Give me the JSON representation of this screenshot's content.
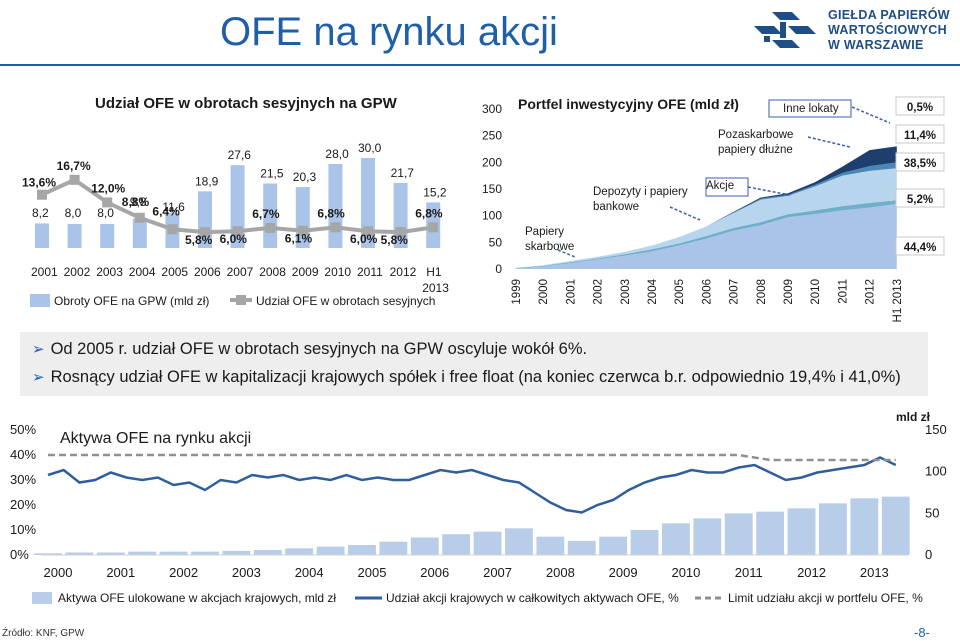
{
  "header": {
    "title": "OFE na rynku akcji"
  },
  "logo": {
    "lines": [
      "GIEŁDA PAPIERÓW",
      "WARTOŚCIOWYCH",
      "W WARSZAWIE"
    ],
    "color": "#1f4e86"
  },
  "bullets": [
    "Od 2005 r. udział OFE w obrotach sesyjnych na GPW  oscyluje wokół 6%.",
    "Rosnący udział OFE w kapitalizacji krajowych spółek i free float (na koniec czerwca b.r. odpowiednio 19,4% i 41,0%)"
  ],
  "footer": {
    "source": "Źródło: KNF, GPW",
    "page": "-8-"
  },
  "chart_data": [
    {
      "type": "bar",
      "title": "Udział OFE w obrotach sesyjnych na GPW",
      "categories": [
        "2001",
        "2002",
        "2003",
        "2004",
        "2005",
        "2006",
        "2007",
        "2008",
        "2009",
        "2010",
        "2011",
        "2012",
        "H1 2013"
      ],
      "series": [
        {
          "name": "Obroty OFE na GPW (mld zł)",
          "type": "bar",
          "color": "#a9c4e8",
          "values": [
            8.2,
            8.0,
            8.0,
            9.8,
            11.6,
            18.9,
            27.6,
            21.5,
            20.3,
            28.0,
            30.0,
            21.7,
            15.2
          ],
          "labels": [
            "8,2",
            "8,0",
            "8,0",
            "9,8",
            "11,6",
            "18,9",
            "27,6",
            "21,5",
            "20,3",
            "28,0",
            "30,0",
            "21,7",
            "15,2"
          ]
        },
        {
          "name": "Udział OFE w obrotach sesyjnych",
          "type": "line",
          "color": "#a6a6a6",
          "values": [
            13.6,
            16.7,
            12.0,
            8.8,
            6.4,
            5.8,
            6.0,
            6.7,
            6.1,
            6.8,
            6.0,
            5.8,
            6.8
          ],
          "labels": [
            "13,6%",
            "16,7%",
            "12,0%",
            "8,8%",
            "6,4%",
            "5,8%",
            "6,0%",
            "6,7%",
            "6,1%",
            "6,8%",
            "6,0%",
            "5,8%",
            "6,8%"
          ]
        }
      ]
    },
    {
      "type": "area",
      "title": "Portfel inwestycyjny OFE (mld zł)",
      "categories": [
        "1999",
        "2000",
        "2001",
        "2002",
        "2003",
        "2004",
        "2005",
        "2006",
        "2007",
        "2008",
        "2009",
        "2010",
        "2011",
        "2012",
        "H1 2013"
      ],
      "yticks": [
        "0",
        "50",
        "100",
        "150",
        "200",
        "250",
        "300"
      ],
      "ylim": [
        0,
        300
      ],
      "series": [
        {
          "name": "Papiery skarbowe",
          "values": [
            1,
            5,
            11,
            18,
            25,
            33,
            44,
            57,
            72,
            82,
            97,
            103,
            110,
            115,
            122
          ],
          "color": "#a9c4e8"
        },
        {
          "name": "Depozyty i papiery bankowe",
          "values": [
            1,
            1,
            2,
            2,
            3,
            4,
            4,
            5,
            5,
            6,
            6,
            7,
            8,
            9,
            7
          ],
          "color": "#6fb0c8"
        },
        {
          "name": "Akcje",
          "values": [
            0,
            1,
            2,
            3,
            4,
            7,
            12,
            18,
            28,
            42,
            34,
            45,
            57,
            60,
            60
          ],
          "color": "#b8d5ee"
        },
        {
          "name": "Pozaskarbowe papiery dłużne",
          "values": [
            0,
            0,
            0,
            0,
            0,
            0,
            0,
            0,
            1,
            2,
            2,
            3,
            5,
            9,
            11
          ],
          "color": "#4a88b8"
        },
        {
          "name": "Inne lokaty",
          "values": [
            0,
            0,
            0,
            0,
            0,
            0,
            0,
            0,
            1,
            2,
            3,
            5,
            12,
            30,
            30
          ],
          "color": "#1e3f6e"
        }
      ],
      "pct_labels": [
        "0,5%",
        "11,4%",
        "38,5%",
        "5,2%",
        "44,4%"
      ]
    },
    {
      "type": "line",
      "title": "Aktywa OFE na rynku akcji",
      "xlabels": [
        "2000",
        "2001",
        "2002",
        "2003",
        "2004",
        "2005",
        "2006",
        "2007",
        "2008",
        "2009",
        "2010",
        "2011",
        "2012",
        "2013"
      ],
      "left_ticks": [
        "0%",
        "10%",
        "20%",
        "30%",
        "40%",
        "50%"
      ],
      "right_ticks": [
        "0",
        "50",
        "100",
        "150"
      ],
      "right_unit": "mld zł",
      "series": [
        {
          "name": "Aktywa OFE ulokowane w akcjach krajowych, mld zł",
          "type": "area",
          "axis": "right",
          "color": "#b7cde8",
          "x": [
            2000,
            2000.5,
            2001,
            2001.5,
            2002,
            2002.5,
            2003,
            2003.5,
            2004,
            2004.5,
            2005,
            2005.5,
            2006,
            2006.5,
            2007,
            2007.5,
            2008,
            2008.5,
            2009,
            2009.5,
            2010,
            2010.5,
            2011,
            2011.5,
            2012,
            2012.5,
            2013,
            2013.5
          ],
          "values": [
            2,
            3,
            3,
            4,
            4,
            4,
            5,
            6,
            8,
            10,
            12,
            16,
            21,
            25,
            28,
            32,
            22,
            17,
            22,
            30,
            38,
            44,
            50,
            52,
            56,
            62,
            68,
            70
          ]
        },
        {
          "name": "Udział akcji krajowych w całkowitych aktywach OFE, %",
          "type": "line",
          "axis": "left",
          "color": "#2e5e9e",
          "x": [
            2000,
            2000.25,
            2000.5,
            2000.75,
            2001,
            2001.25,
            2001.5,
            2001.75,
            2002,
            2002.25,
            2002.5,
            2002.75,
            2003,
            2003.25,
            2003.5,
            2003.75,
            2004,
            2004.25,
            2004.5,
            2004.75,
            2005,
            2005.25,
            2005.5,
            2005.75,
            2006,
            2006.25,
            2006.5,
            2006.75,
            2007,
            2007.25,
            2007.5,
            2007.75,
            2008,
            2008.25,
            2008.5,
            2008.75,
            2009,
            2009.25,
            2009.5,
            2009.75,
            2010,
            2010.25,
            2010.5,
            2010.75,
            2011,
            2011.25,
            2011.5,
            2011.75,
            2012,
            2012.25,
            2012.5,
            2012.75,
            2013,
            2013.25,
            2013.5
          ],
          "values": [
            32,
            34,
            29,
            30,
            33,
            31,
            30,
            31,
            28,
            29,
            26,
            30,
            29,
            32,
            31,
            32,
            30,
            31,
            30,
            32,
            30,
            31,
            30,
            30,
            32,
            34,
            33,
            34,
            32,
            30,
            29,
            25,
            21,
            18,
            17,
            20,
            22,
            26,
            29,
            31,
            32,
            34,
            33,
            33,
            35,
            36,
            33,
            30,
            31,
            33,
            34,
            35,
            36,
            39,
            36
          ]
        },
        {
          "name": "Limit udziału akcji w portfelu OFE, %",
          "type": "line",
          "axis": "left",
          "dashed": true,
          "color": "#909090",
          "x": [
            2000,
            2004,
            2004.01,
            2010,
            2010.01,
            2011,
            2011.5,
            2013.5
          ],
          "values": [
            40,
            40,
            40,
            40,
            40,
            40,
            38,
            38
          ]
        }
      ]
    }
  ]
}
